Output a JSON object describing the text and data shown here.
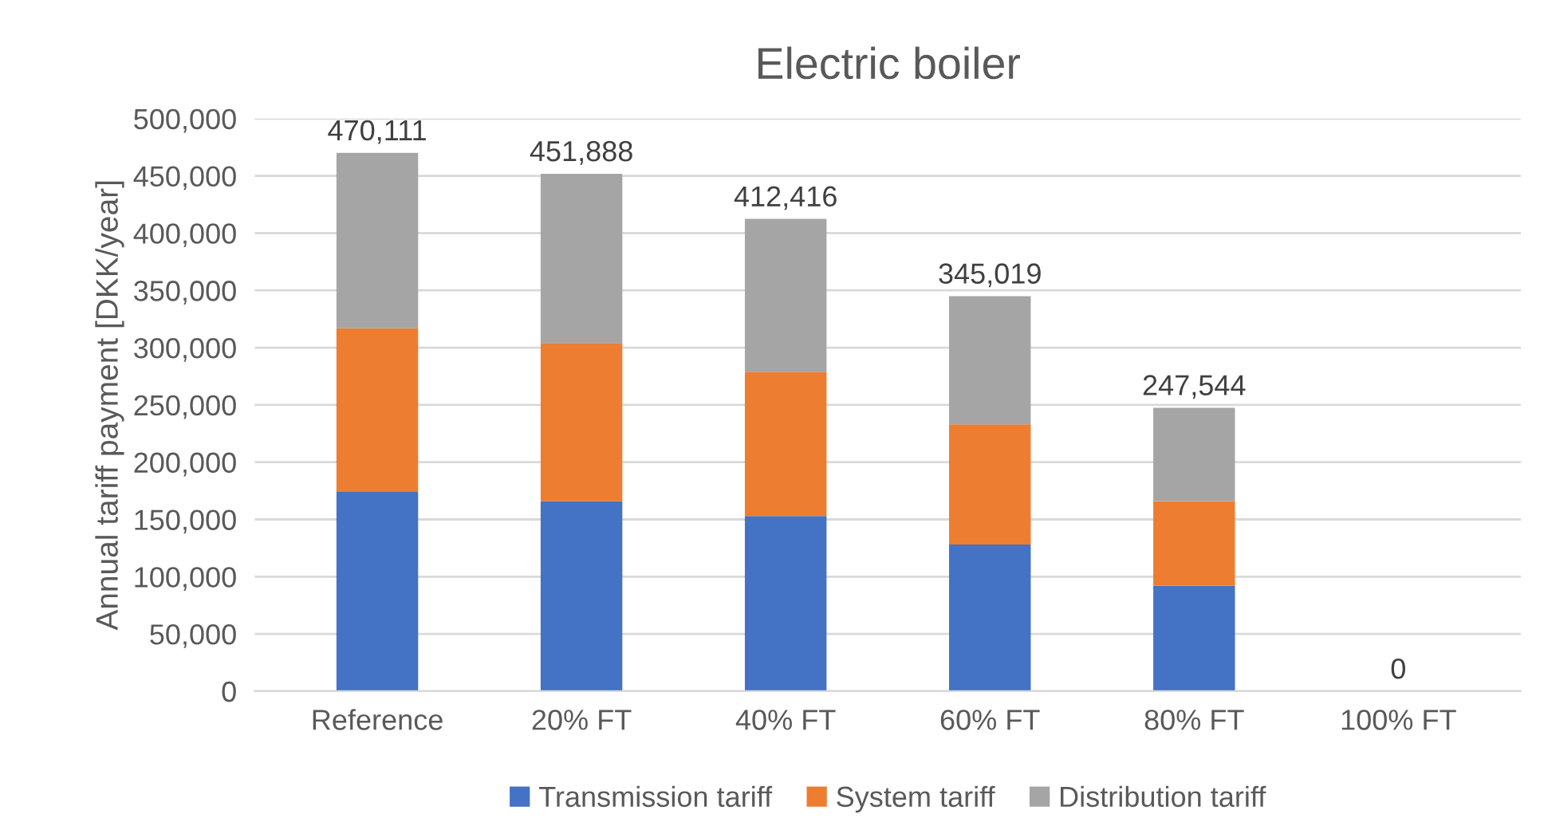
{
  "chart_data": {
    "type": "bar",
    "title": "Electric boiler",
    "ylabel": "Annual tariff payment [DKK/year]",
    "categories": [
      "Reference",
      "20% FT",
      "40% FT",
      "60% FT",
      "80% FT",
      "100% FT"
    ],
    "series": [
      {
        "name": "Transmission tariff",
        "color": "#4472c4",
        "values": [
          174000,
          166000,
          153000,
          128000,
          92000,
          0
        ]
      },
      {
        "name": "System tariff",
        "color": "#ed7d31",
        "values": [
          143000,
          138000,
          126000,
          105000,
          74000,
          0
        ]
      },
      {
        "name": "Distribution tariff",
        "color": "#a5a5a5",
        "values": [
          153111,
          147888,
          133416,
          112019,
          81544,
          0
        ]
      }
    ],
    "stacked": true,
    "totals": [
      "470,111",
      "451,888",
      "412,416",
      "345,019",
      "247,544",
      "0"
    ],
    "ylim": [
      0,
      500000
    ],
    "yticks": [
      {
        "value": 0,
        "label": "0"
      },
      {
        "value": 50000,
        "label": "50,000"
      },
      {
        "value": 100000,
        "label": "100,000"
      },
      {
        "value": 150000,
        "label": "150,000"
      },
      {
        "value": 200000,
        "label": "200,000"
      },
      {
        "value": 250000,
        "label": "250,000"
      },
      {
        "value": 300000,
        "label": "300,000"
      },
      {
        "value": 350000,
        "label": "350,000"
      },
      {
        "value": 400000,
        "label": "400,000"
      },
      {
        "value": 450000,
        "label": "450,000"
      },
      {
        "value": 500000,
        "label": "500,000"
      }
    ],
    "grid": "y",
    "legend": "bottom"
  }
}
